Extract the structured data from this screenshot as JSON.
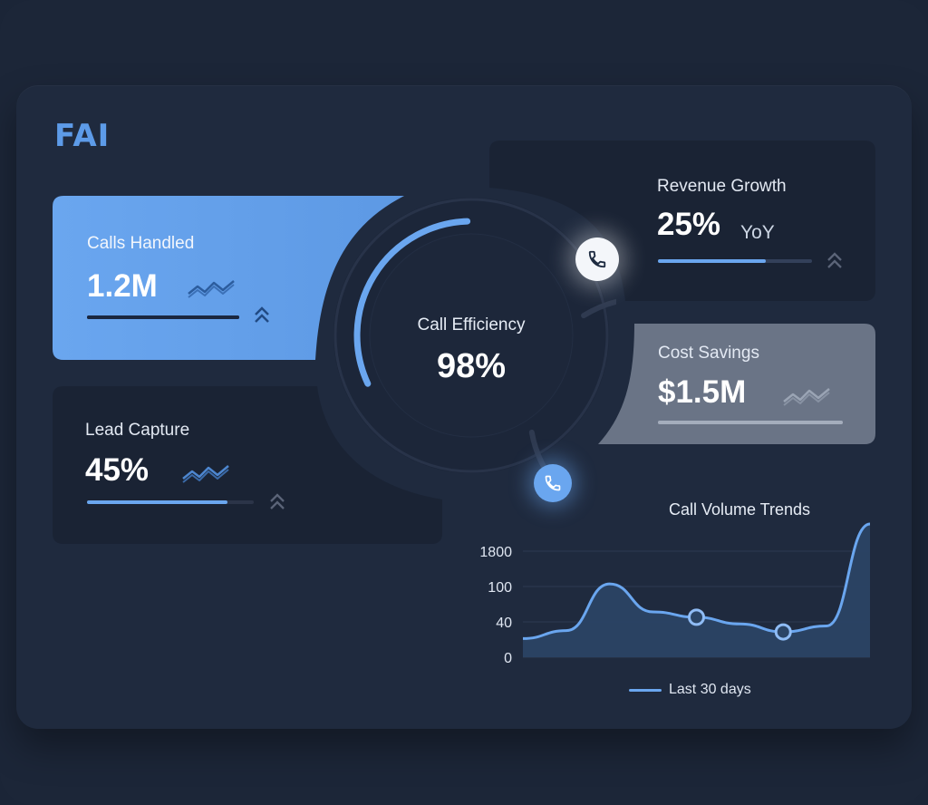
{
  "brand": {
    "logo_text": "FAI"
  },
  "cards": {
    "calls_handled": {
      "label": "Calls Handled",
      "value": "1.2M",
      "progress": 1.0
    },
    "lead_capture": {
      "label": "Lead Capture",
      "value": "45%",
      "progress": 0.84
    },
    "revenue_growth": {
      "label": "Revenue Growth",
      "value": "25%",
      "suffix": "YoY",
      "progress": 0.7
    },
    "cost_savings": {
      "label": "Cost Savings",
      "value": "$1.5M",
      "progress": 1.0
    }
  },
  "efficiency": {
    "label": "Call Efficiency",
    "value": "98%",
    "percent": 98
  },
  "icons": {
    "phone_top": "phone-icon",
    "phone_bottom": "phone-icon",
    "trend": "trend-zigzag-icon",
    "chevron": "double-chevron-up-icon"
  },
  "colors": {
    "accent": "#6aa6ef",
    "card_highlight": "#6aa6ef",
    "card_dark": "#1a2334",
    "card_grey": "#6a7486"
  },
  "chart_data": {
    "type": "area",
    "title": "Call Volume Trends",
    "ytick_labels": [
      "1800",
      "100",
      "40",
      "0"
    ],
    "series": [
      {
        "name": "Last 30 days",
        "values": [
          0.28,
          0.4,
          1.1,
          0.68,
          0.6,
          0.5,
          0.38,
          0.47,
          2.0
        ]
      }
    ],
    "markers_at_index": [
      4,
      6
    ],
    "legend": "bottom-center"
  }
}
